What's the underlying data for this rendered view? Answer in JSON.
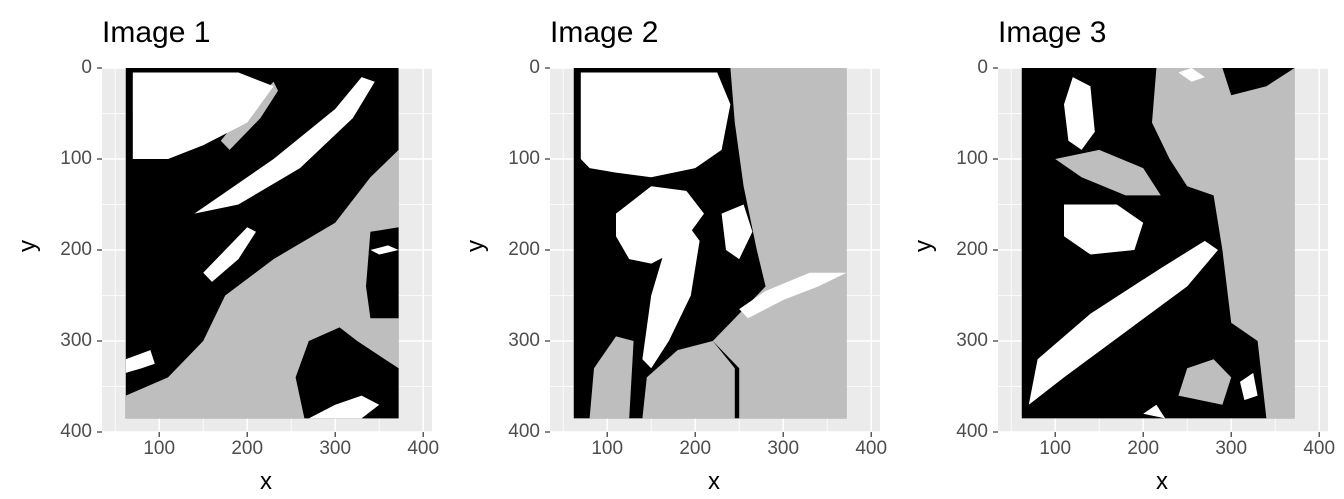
{
  "chart_data": [
    {
      "type": "heatmap",
      "title": "Image 1",
      "xlabel": "x",
      "ylabel": "y",
      "xlim": [
        35,
        410
      ],
      "ylim": [
        400,
        0
      ],
      "y_reversed": true,
      "xticks": [
        100,
        200,
        300,
        400
      ],
      "yticks": [
        0,
        100,
        200,
        300,
        400
      ],
      "grid": true,
      "colors": {
        "panel": "#ebebeb",
        "gray_level": "#bebebe",
        "black_level": "#000000",
        "white_level": "#ffffff"
      },
      "raster_extent": {
        "x": [
          62,
          372
        ],
        "y": [
          0,
          385
        ]
      },
      "levels": [
        "black",
        "gray",
        "white"
      ],
      "regions": [
        {
          "level": "gray",
          "points": [
            [
              62,
              385
            ],
            [
              62,
              360
            ],
            [
              110,
              340
            ],
            [
              150,
              300
            ],
            [
              175,
              250
            ],
            [
              230,
              210
            ],
            [
              300,
              170
            ],
            [
              340,
              120
            ],
            [
              372,
              90
            ],
            [
              372,
              385
            ]
          ]
        },
        {
          "level": "gray",
          "points": [
            [
              180,
              90
            ],
            [
              215,
              55
            ],
            [
              235,
              25
            ],
            [
              230,
              15
            ],
            [
              195,
              50
            ],
            [
              170,
              80
            ]
          ]
        },
        {
          "level": "white",
          "points": [
            [
              70,
              5
            ],
            [
              190,
              5
            ],
            [
              230,
              20
            ],
            [
              200,
              60
            ],
            [
              150,
              85
            ],
            [
              110,
              100
            ],
            [
              70,
              100
            ]
          ]
        },
        {
          "level": "white",
          "points": [
            [
              140,
              160
            ],
            [
              230,
              100
            ],
            [
              300,
              45
            ],
            [
              330,
              10
            ],
            [
              345,
              15
            ],
            [
              320,
              55
            ],
            [
              260,
              110
            ],
            [
              190,
              150
            ]
          ]
        },
        {
          "level": "white",
          "points": [
            [
              150,
              225
            ],
            [
              175,
              200
            ],
            [
              200,
              175
            ],
            [
              210,
              180
            ],
            [
              190,
              210
            ],
            [
              160,
              235
            ]
          ]
        },
        {
          "level": "black",
          "points": [
            [
              340,
              180
            ],
            [
              372,
              175
            ],
            [
              372,
              275
            ],
            [
              340,
              275
            ],
            [
              335,
              240
            ]
          ]
        },
        {
          "level": "black",
          "points": [
            [
              265,
              385
            ],
            [
              255,
              340
            ],
            [
              270,
              300
            ],
            [
              305,
              285
            ],
            [
              325,
              300
            ],
            [
              372,
              330
            ],
            [
              372,
              385
            ]
          ]
        },
        {
          "level": "white",
          "points": [
            [
              270,
              385
            ],
            [
              300,
              370
            ],
            [
              330,
              360
            ],
            [
              350,
              370
            ],
            [
              330,
              385
            ]
          ]
        },
        {
          "level": "white",
          "points": [
            [
              62,
              320
            ],
            [
              90,
              310
            ],
            [
              95,
              325
            ],
            [
              80,
              330
            ],
            [
              62,
              335
            ]
          ]
        },
        {
          "level": "white",
          "points": [
            [
              340,
              200
            ],
            [
              360,
              195
            ],
            [
              372,
              200
            ],
            [
              350,
              205
            ]
          ]
        }
      ]
    },
    {
      "type": "heatmap",
      "title": "Image 2",
      "xlabel": "x",
      "ylabel": "y",
      "xlim": [
        35,
        410
      ],
      "ylim": [
        400,
        0
      ],
      "y_reversed": true,
      "xticks": [
        100,
        200,
        300,
        400
      ],
      "yticks": [
        0,
        100,
        200,
        300,
        400
      ],
      "grid": true,
      "colors": {
        "panel": "#ebebeb",
        "gray_level": "#bebebe",
        "black_level": "#000000",
        "white_level": "#ffffff"
      },
      "raster_extent": {
        "x": [
          62,
          372
        ],
        "y": [
          0,
          385
        ]
      },
      "levels": [
        "black",
        "gray",
        "white"
      ],
      "regions": [
        {
          "level": "gray",
          "points": [
            [
              240,
              0
            ],
            [
              372,
              0
            ],
            [
              372,
              385
            ],
            [
              250,
              385
            ],
            [
              250,
              330
            ],
            [
              220,
              300
            ],
            [
              250,
              270
            ],
            [
              280,
              240
            ],
            [
              270,
              200
            ],
            [
              255,
              130
            ],
            [
              245,
              60
            ]
          ]
        },
        {
          "level": "white",
          "points": [
            [
              70,
              5
            ],
            [
              225,
              5
            ],
            [
              240,
              40
            ],
            [
              230,
              90
            ],
            [
              200,
              110
            ],
            [
              150,
              120
            ],
            [
              110,
              115
            ],
            [
              80,
              110
            ],
            [
              70,
              100
            ]
          ]
        },
        {
          "level": "white",
          "points": [
            [
              110,
              160
            ],
            [
              150,
              130
            ],
            [
              190,
              135
            ],
            [
              210,
              160
            ],
            [
              180,
              200
            ],
            [
              150,
              215
            ],
            [
              125,
              210
            ],
            [
              110,
              185
            ]
          ]
        },
        {
          "level": "white",
          "points": [
            [
              140,
              320
            ],
            [
              150,
              250
            ],
            [
              170,
              185
            ],
            [
              190,
              170
            ],
            [
              205,
              190
            ],
            [
              195,
              250
            ],
            [
              170,
              300
            ],
            [
              150,
              330
            ]
          ]
        },
        {
          "level": "white",
          "points": [
            [
              250,
              265
            ],
            [
              280,
              245
            ],
            [
              330,
              225
            ],
            [
              372,
              225
            ],
            [
              340,
              240
            ],
            [
              300,
              255
            ],
            [
              260,
              275
            ]
          ]
        },
        {
          "level": "gray",
          "points": [
            [
              80,
              385
            ],
            [
              85,
              330
            ],
            [
              110,
              295
            ],
            [
              130,
              300
            ],
            [
              125,
              385
            ]
          ]
        },
        {
          "level": "gray",
          "points": [
            [
              140,
              385
            ],
            [
              145,
              340
            ],
            [
              180,
              310
            ],
            [
              220,
              300
            ],
            [
              245,
              330
            ],
            [
              245,
              385
            ]
          ]
        },
        {
          "level": "gray",
          "points": [
            [
              320,
              60
            ],
            [
              350,
              50
            ],
            [
              372,
              55
            ],
            [
              372,
              90
            ],
            [
              340,
              85
            ],
            [
              320,
              75
            ]
          ]
        },
        {
          "level": "white",
          "points": [
            [
              230,
              160
            ],
            [
              255,
              150
            ],
            [
              265,
              180
            ],
            [
              250,
              210
            ],
            [
              235,
              200
            ]
          ]
        }
      ]
    },
    {
      "type": "heatmap",
      "title": "Image 3",
      "xlabel": "x",
      "ylabel": "y",
      "xlim": [
        35,
        410
      ],
      "ylim": [
        400,
        0
      ],
      "y_reversed": true,
      "xticks": [
        100,
        200,
        300,
        400
      ],
      "yticks": [
        0,
        100,
        200,
        300,
        400
      ],
      "grid": true,
      "colors": {
        "panel": "#ebebeb",
        "gray_level": "#bebebe",
        "black_level": "#000000",
        "white_level": "#ffffff"
      },
      "raster_extent": {
        "x": [
          62,
          372
        ],
        "y": [
          0,
          385
        ]
      },
      "levels": [
        "black",
        "gray",
        "white"
      ],
      "regions": [
        {
          "level": "gray",
          "points": [
            [
              215,
              0
            ],
            [
              290,
              0
            ],
            [
              300,
              30
            ],
            [
              340,
              20
            ],
            [
              372,
              0
            ],
            [
              372,
              385
            ],
            [
              340,
              385
            ],
            [
              330,
              300
            ],
            [
              300,
              280
            ],
            [
              290,
              200
            ],
            [
              280,
              140
            ],
            [
              250,
              130
            ],
            [
              230,
              100
            ],
            [
              210,
              60
            ]
          ]
        },
        {
          "level": "white",
          "points": [
            [
              120,
              10
            ],
            [
              140,
              20
            ],
            [
              145,
              70
            ],
            [
              130,
              90
            ],
            [
              115,
              80
            ],
            [
              110,
              40
            ]
          ]
        },
        {
          "level": "white",
          "points": [
            [
              70,
              370
            ],
            [
              80,
              320
            ],
            [
              140,
              270
            ],
            [
              220,
              220
            ],
            [
              270,
              190
            ],
            [
              285,
              200
            ],
            [
              250,
              240
            ],
            [
              180,
              290
            ],
            [
              110,
              340
            ]
          ]
        },
        {
          "level": "white",
          "points": [
            [
              110,
              150
            ],
            [
              170,
              150
            ],
            [
              200,
              170
            ],
            [
              190,
              200
            ],
            [
              140,
              205
            ],
            [
              110,
              185
            ]
          ]
        },
        {
          "level": "gray",
          "points": [
            [
              100,
              100
            ],
            [
              150,
              90
            ],
            [
              200,
              110
            ],
            [
              220,
              140
            ],
            [
              180,
              140
            ],
            [
              130,
              120
            ]
          ]
        },
        {
          "level": "gray",
          "points": [
            [
              240,
              360
            ],
            [
              250,
              330
            ],
            [
              280,
              320
            ],
            [
              300,
              340
            ],
            [
              290,
              370
            ]
          ]
        },
        {
          "level": "white",
          "points": [
            [
              310,
              345
            ],
            [
              325,
              335
            ],
            [
              330,
              360
            ],
            [
              315,
              365
            ]
          ]
        },
        {
          "level": "white",
          "points": [
            [
              200,
              380
            ],
            [
              215,
              370
            ],
            [
              225,
              385
            ]
          ]
        },
        {
          "level": "white",
          "points": [
            [
              240,
              5
            ],
            [
              255,
              0
            ],
            [
              270,
              10
            ],
            [
              255,
              15
            ]
          ]
        }
      ]
    }
  ]
}
